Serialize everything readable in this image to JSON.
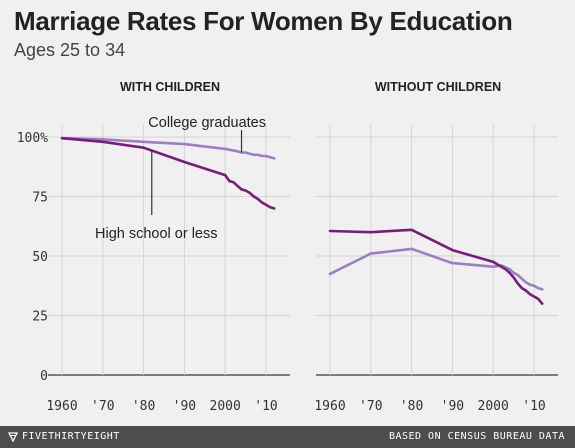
{
  "chart_data": {
    "type": "line",
    "title": "Marriage Rates For Women By Education",
    "subtitle": "Ages 25 to 34",
    "ylim": [
      0,
      100
    ],
    "y_ticks": [
      0,
      25,
      50,
      75,
      100
    ],
    "y_tick_labels": [
      "0",
      "25",
      "50",
      "75",
      "100%"
    ],
    "x_ticks": [
      1960,
      1970,
      1980,
      1990,
      2000,
      2010
    ],
    "x_tick_labels": [
      "1960",
      "'70",
      "'80",
      "'90",
      "2000",
      "'10"
    ],
    "grid": "horizontal",
    "colors": {
      "college": "#9b7fc4",
      "highschool": "#7b1a7e"
    },
    "annotations": {
      "college": "College graduates",
      "highschool": "High school or less"
    },
    "panels": [
      {
        "title": "WITH CHILDREN",
        "series": [
          {
            "key": "college",
            "x": [
              1960,
              1970,
              1980,
              1990,
              2000,
              2003,
              2004,
              2005,
              2006,
              2007,
              2008,
              2009,
              2010,
              2011,
              2012
            ],
            "y": [
              99.5,
              99,
              98,
              97,
              95,
              94,
              93.5,
              93.5,
              93,
              92.5,
              92.5,
              92,
              92,
              91.5,
              91
            ]
          },
          {
            "key": "highschool",
            "x": [
              1960,
              1970,
              1980,
              1990,
              2000,
              2001,
              2002,
              2003,
              2004,
              2005,
              2006,
              2007,
              2008,
              2009,
              2010,
              2011,
              2012
            ],
            "y": [
              99.5,
              98,
              95.5,
              89.5,
              84,
              81.5,
              81,
              79.5,
              78,
              77.5,
              76.5,
              75,
              74,
              72.5,
              71.5,
              70.5,
              70
            ]
          }
        ]
      },
      {
        "title": "WITHOUT CHILDREN",
        "series": [
          {
            "key": "college",
            "x": [
              1960,
              1970,
              1980,
              1990,
              2000,
              2002,
              2004,
              2005,
              2006,
              2007,
              2008,
              2009,
              2010,
              2011,
              2012
            ],
            "y": [
              42.5,
              51,
              53,
              47,
              45.5,
              46,
              44.5,
              43,
              42,
              40.5,
              39,
              38,
              37.5,
              36.5,
              36
            ]
          },
          {
            "key": "highschool",
            "x": [
              1960,
              1970,
              1980,
              1990,
              2000,
              2002,
              2003,
              2004,
              2005,
              2006,
              2007,
              2008,
              2009,
              2010,
              2011,
              2012
            ],
            "y": [
              60.5,
              60,
              61,
              52.5,
              47.5,
              45.5,
              44.5,
              43,
              41,
              38.5,
              36.5,
              35.5,
              34,
              33,
              32,
              30
            ]
          }
        ]
      }
    ]
  },
  "footer": {
    "brand": "FIVETHIRTYEIGHT",
    "brand_icon": "fivethirtyeight-logo-icon",
    "source": "BASED ON CENSUS BUREAU DATA"
  }
}
